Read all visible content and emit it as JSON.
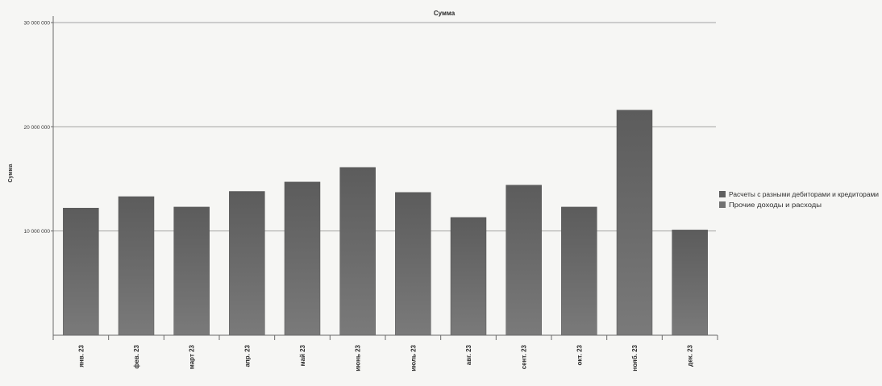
{
  "chart_data": {
    "type": "bar",
    "title": "Сумма",
    "xlabel": "",
    "ylabel": "Сумма",
    "ylim": [
      0,
      30000000
    ],
    "grid": true,
    "legend_position": "right",
    "yticks": [
      {
        "value": 10000000,
        "label": "10 000 000"
      },
      {
        "value": 20000000,
        "label": "20 000 000"
      },
      {
        "value": 30000000,
        "label": "30 000 000"
      }
    ],
    "categories": [
      "янв. 23",
      "фев. 23",
      "март 23",
      "апр. 23",
      "май 23",
      "июнь 23",
      "июль 23",
      "авг. 23",
      "сент. 23",
      "окт. 23",
      "нояб. 23",
      "дек. 23"
    ],
    "values": [
      12200000,
      13300000,
      12300000,
      13800000,
      14700000,
      16100000,
      13700000,
      11300000,
      14400000,
      12300000,
      21600000,
      10100000
    ],
    "legend": [
      {
        "name": "Расчеты с разными дебиторами и кредиторами",
        "color": "#5f5f5f"
      },
      {
        "name": "Прочие доходы и расходы",
        "color": "#727272"
      }
    ],
    "bar_color": "#6a6a6a"
  }
}
